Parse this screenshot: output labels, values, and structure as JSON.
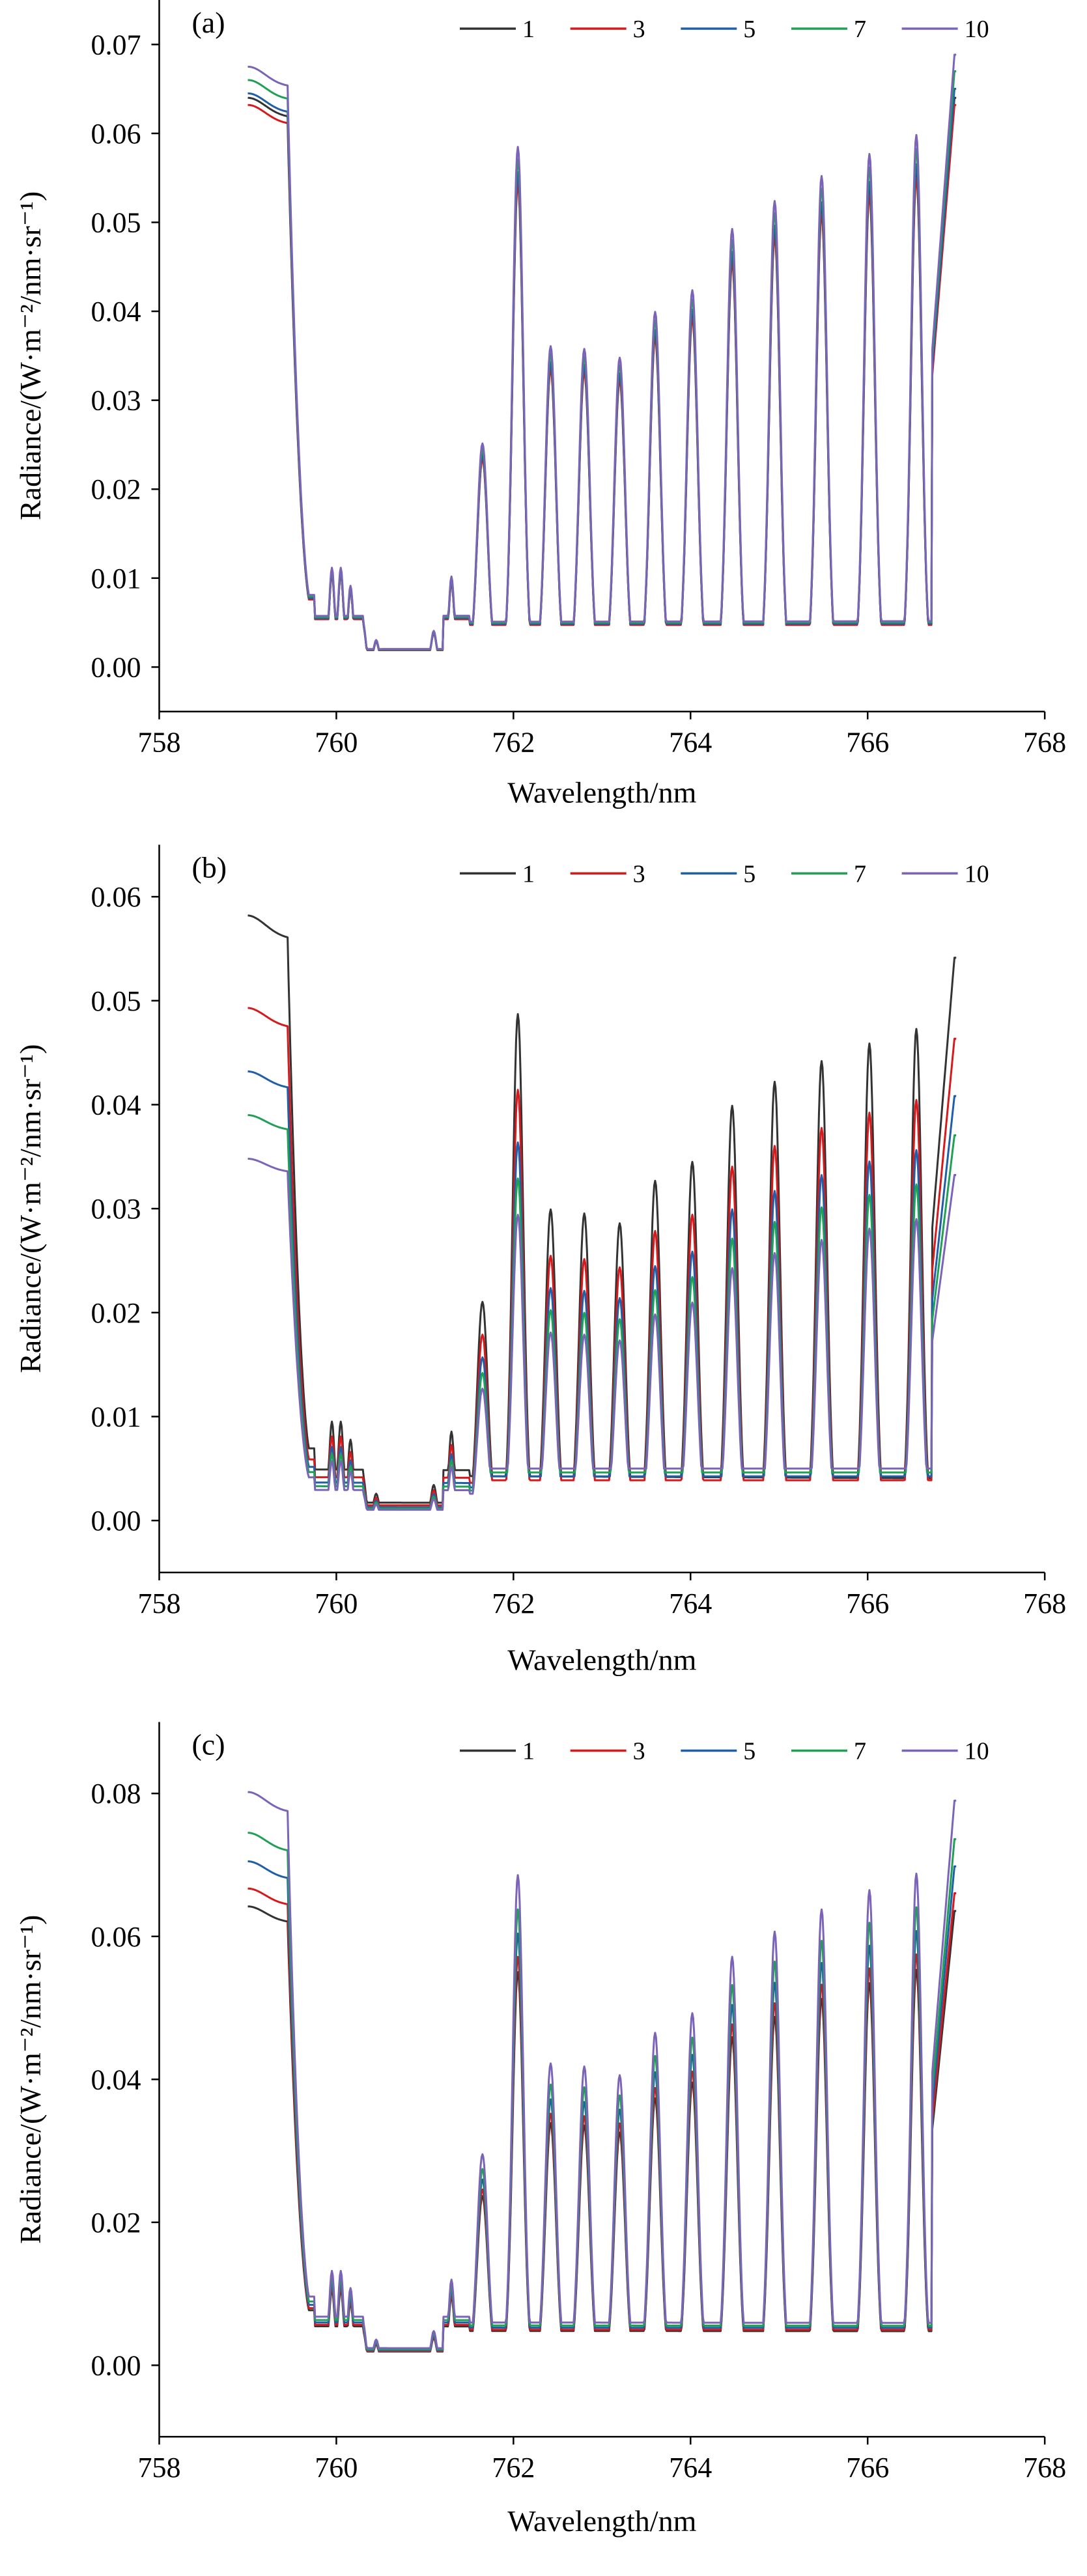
{
  "chart_data": [
    {
      "type": "line",
      "panel_label": "(a)",
      "xlabel": "Wavelength/nm",
      "ylabel": "Radiance/(W·m⁻²/nm·sr⁻¹)",
      "xlim": [
        758,
        768
      ],
      "ylim": [
        -0.005,
        0.075
      ],
      "xticks": [
        758,
        760,
        762,
        764,
        766,
        768
      ],
      "yticks": [
        0.0,
        0.01,
        0.02,
        0.03,
        0.04,
        0.05,
        0.06,
        0.07
      ],
      "ytick_labels": [
        "0.00",
        "0.01",
        "0.02",
        "0.03",
        "0.04",
        "0.05",
        "0.06",
        "0.07"
      ],
      "grid": false,
      "legend_position": "top",
      "series": [
        {
          "name": "1",
          "color": "#333333",
          "continuum": 0.064,
          "slope": 0.0
        },
        {
          "name": "3",
          "color": "#d7191c",
          "continuum": 0.0632,
          "slope": 0.0
        },
        {
          "name": "5",
          "color": "#1f5fa8",
          "continuum": 0.0645,
          "slope": 0.008
        },
        {
          "name": "7",
          "color": "#1fa055",
          "continuum": 0.066,
          "slope": 0.015
        },
        {
          "name": "10",
          "color": "#7b63b8",
          "continuum": 0.0675,
          "slope": 0.02
        }
      ]
    },
    {
      "type": "line",
      "panel_label": "(b)",
      "xlabel": "Wavelength/nm",
      "ylabel": "Radiance/(W·m⁻²/nm·sr⁻¹)",
      "xlim": [
        758,
        768
      ],
      "ylim": [
        -0.005,
        0.065
      ],
      "xticks": [
        758,
        760,
        762,
        764,
        766,
        768
      ],
      "yticks": [
        0.0,
        0.01,
        0.02,
        0.03,
        0.04,
        0.05,
        0.06
      ],
      "ytick_labels": [
        "0.00",
        "0.01",
        "0.02",
        "0.03",
        "0.04",
        "0.05",
        "0.06"
      ],
      "grid": false,
      "legend_position": "top",
      "series": [
        {
          "name": "1",
          "color": "#333333",
          "continuum": 0.0582,
          "slope": -0.07
        },
        {
          "name": "3",
          "color": "#d7191c",
          "continuum": 0.0493,
          "slope": -0.06
        },
        {
          "name": "5",
          "color": "#1f5fa8",
          "continuum": 0.0432,
          "slope": -0.055
        },
        {
          "name": "7",
          "color": "#1fa055",
          "continuum": 0.039,
          "slope": -0.05
        },
        {
          "name": "10",
          "color": "#7b63b8",
          "continuum": 0.0348,
          "slope": -0.045
        }
      ]
    },
    {
      "type": "line",
      "panel_label": "(c)",
      "xlabel": "Wavelength/nm",
      "ylabel": "Radiance/(W·m⁻²/nm·sr⁻¹)",
      "xlim": [
        758,
        768
      ],
      "ylim": [
        -0.01,
        0.09
      ],
      "xticks": [
        758,
        760,
        762,
        764,
        766,
        768
      ],
      "yticks": [
        0.0,
        0.02,
        0.04,
        0.06,
        0.08
      ],
      "ytick_labels": [
        "0.00",
        "0.02",
        "0.04",
        "0.06",
        "0.08"
      ],
      "grid": false,
      "legend_position": "top",
      "series": [
        {
          "name": "1",
          "color": "#333333",
          "continuum": 0.0642,
          "slope": -0.01
        },
        {
          "name": "3",
          "color": "#d7191c",
          "continuum": 0.0667,
          "slope": -0.01
        },
        {
          "name": "5",
          "color": "#1f5fa8",
          "continuum": 0.0705,
          "slope": -0.01
        },
        {
          "name": "7",
          "color": "#1fa055",
          "continuum": 0.0745,
          "slope": -0.012
        },
        {
          "name": "10",
          "color": "#7b63b8",
          "continuum": 0.0802,
          "slope": -0.015
        }
      ]
    }
  ]
}
